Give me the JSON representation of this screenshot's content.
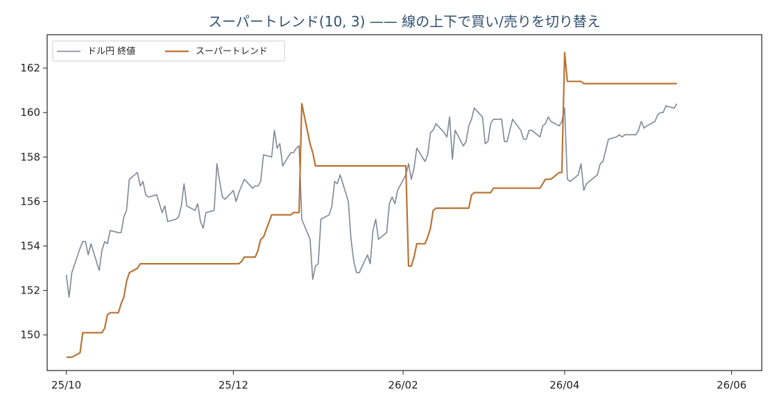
{
  "colors": {
    "price": "#7f8594",
    "supertrend": "#b87333",
    "axis": "#222222",
    "title": "#2f4f6f"
  },
  "chart_data": {
    "type": "line",
    "title": "スーパートレンド(10, 3) —— 線の上下で買い/売りを切り替え",
    "xlabel": "",
    "ylabel": "",
    "x_ticks": [
      {
        "label": "25/10",
        "date": "2025-10-01"
      },
      {
        "label": "25/12",
        "date": "2025-12-01"
      },
      {
        "label": "26/02",
        "date": "2026-02-01"
      },
      {
        "label": "26/04",
        "date": "2026-04-01"
      },
      {
        "label": "26/06",
        "date": "2026-06-01"
      }
    ],
    "y_ticks": [
      150,
      152,
      154,
      156,
      158,
      160,
      162
    ],
    "xlim": [
      "2025-09-24",
      "2026-06-12"
    ],
    "ylim": [
      148.4,
      163.5
    ],
    "grid": false,
    "legend_position": "upper-left",
    "series": [
      {
        "name": "ドル円 終値",
        "color": "#7f8594",
        "points": [
          [
            "2025-10-01",
            152.7
          ],
          [
            "2025-10-02",
            151.7
          ],
          [
            "2025-10-03",
            152.8
          ],
          [
            "2025-10-06",
            153.9
          ],
          [
            "2025-10-07",
            154.2
          ],
          [
            "2025-10-08",
            154.2
          ],
          [
            "2025-10-09",
            153.6
          ],
          [
            "2025-10-10",
            154.1
          ],
          [
            "2025-10-13",
            152.9
          ],
          [
            "2025-10-14",
            153.8
          ],
          [
            "2025-10-15",
            154.2
          ],
          [
            "2025-10-16",
            154.1
          ],
          [
            "2025-10-17",
            154.7
          ],
          [
            "2025-10-20",
            154.6
          ],
          [
            "2025-10-21",
            154.6
          ],
          [
            "2025-10-22",
            155.3
          ],
          [
            "2025-10-23",
            155.6
          ],
          [
            "2025-10-24",
            157.0
          ],
          [
            "2025-10-27",
            157.3
          ],
          [
            "2025-10-28",
            156.7
          ],
          [
            "2025-10-29",
            156.9
          ],
          [
            "2025-10-30",
            156.3
          ],
          [
            "2025-10-31",
            156.2
          ],
          [
            "2025-11-03",
            156.3
          ],
          [
            "2025-11-04",
            155.9
          ],
          [
            "2025-11-05",
            155.5
          ],
          [
            "2025-11-06",
            155.8
          ],
          [
            "2025-11-07",
            155.1
          ],
          [
            "2025-11-10",
            155.2
          ],
          [
            "2025-11-11",
            155.3
          ],
          [
            "2025-11-12",
            155.8
          ],
          [
            "2025-11-13",
            156.8
          ],
          [
            "2025-11-14",
            155.8
          ],
          [
            "2025-11-17",
            155.6
          ],
          [
            "2025-11-18",
            155.9
          ],
          [
            "2025-11-19",
            155.1
          ],
          [
            "2025-11-20",
            154.8
          ],
          [
            "2025-11-21",
            155.5
          ],
          [
            "2025-11-24",
            155.6
          ],
          [
            "2025-11-25",
            157.7
          ],
          [
            "2025-11-26",
            156.9
          ],
          [
            "2025-11-27",
            156.2
          ],
          [
            "2025-11-28",
            156.1
          ],
          [
            "2025-12-01",
            156.5
          ],
          [
            "2025-12-02",
            156.0
          ],
          [
            "2025-12-03",
            156.4
          ],
          [
            "2025-12-04",
            156.7
          ],
          [
            "2025-12-05",
            157.0
          ],
          [
            "2025-12-08",
            156.6
          ],
          [
            "2025-12-09",
            156.7
          ],
          [
            "2025-12-10",
            156.7
          ],
          [
            "2025-12-11",
            156.9
          ],
          [
            "2025-12-12",
            158.1
          ],
          [
            "2025-12-15",
            158.0
          ],
          [
            "2025-12-16",
            159.2
          ],
          [
            "2025-12-17",
            158.4
          ],
          [
            "2025-12-18",
            158.6
          ],
          [
            "2025-12-19",
            157.6
          ],
          [
            "2025-12-22",
            158.2
          ],
          [
            "2025-12-23",
            158.2
          ],
          [
            "2025-12-24",
            158.4
          ],
          [
            "2025-12-25",
            158.5
          ],
          [
            "2025-12-26",
            155.2
          ],
          [
            "2025-12-29",
            154.3
          ],
          [
            "2025-12-30",
            152.5
          ],
          [
            "2025-12-31",
            153.1
          ],
          [
            "2026-01-01",
            153.2
          ],
          [
            "2026-01-02",
            155.2
          ],
          [
            "2026-01-05",
            155.4
          ],
          [
            "2026-01-06",
            155.8
          ],
          [
            "2026-01-07",
            156.9
          ],
          [
            "2026-01-08",
            156.8
          ],
          [
            "2026-01-09",
            157.2
          ],
          [
            "2026-01-12",
            156.0
          ],
          [
            "2026-01-13",
            154.3
          ],
          [
            "2026-01-14",
            153.3
          ],
          [
            "2026-01-15",
            152.8
          ],
          [
            "2026-01-16",
            152.8
          ],
          [
            "2026-01-19",
            153.6
          ],
          [
            "2026-01-20",
            153.2
          ],
          [
            "2026-01-21",
            154.7
          ],
          [
            "2026-01-22",
            155.2
          ],
          [
            "2026-01-23",
            154.3
          ],
          [
            "2026-01-26",
            154.6
          ],
          [
            "2026-01-27",
            155.9
          ],
          [
            "2026-01-28",
            156.2
          ],
          [
            "2026-01-29",
            155.9
          ],
          [
            "2026-01-30",
            156.5
          ],
          [
            "2026-02-02",
            157.2
          ],
          [
            "2026-02-03",
            157.7
          ],
          [
            "2026-02-04",
            157.0
          ],
          [
            "2026-02-05",
            157.5
          ],
          [
            "2026-02-06",
            158.4
          ],
          [
            "2026-02-09",
            157.8
          ],
          [
            "2026-02-10",
            158.1
          ],
          [
            "2026-02-11",
            159.1
          ],
          [
            "2026-02-12",
            159.2
          ],
          [
            "2026-02-13",
            159.5
          ],
          [
            "2026-02-16",
            159.1
          ],
          [
            "2026-02-17",
            158.9
          ],
          [
            "2026-02-18",
            159.8
          ],
          [
            "2026-02-19",
            157.9
          ],
          [
            "2026-02-20",
            159.2
          ],
          [
            "2026-02-23",
            158.5
          ],
          [
            "2026-02-24",
            158.7
          ],
          [
            "2026-02-25",
            159.4
          ],
          [
            "2026-02-26",
            159.7
          ],
          [
            "2026-02-27",
            160.2
          ],
          [
            "2026-03-02",
            159.8
          ],
          [
            "2026-03-03",
            158.6
          ],
          [
            "2026-03-04",
            158.7
          ],
          [
            "2026-03-05",
            159.5
          ],
          [
            "2026-03-06",
            159.7
          ],
          [
            "2026-03-09",
            159.7
          ],
          [
            "2026-03-10",
            158.7
          ],
          [
            "2026-03-11",
            158.7
          ],
          [
            "2026-03-12",
            159.2
          ],
          [
            "2026-03-13",
            159.7
          ],
          [
            "2026-03-16",
            159.2
          ],
          [
            "2026-03-17",
            158.8
          ],
          [
            "2026-03-18",
            158.8
          ],
          [
            "2026-03-19",
            159.2
          ],
          [
            "2026-03-20",
            159.2
          ],
          [
            "2026-03-23",
            158.9
          ],
          [
            "2026-03-24",
            159.4
          ],
          [
            "2026-03-25",
            159.5
          ],
          [
            "2026-03-26",
            159.8
          ],
          [
            "2026-03-27",
            159.6
          ],
          [
            "2026-03-30",
            159.4
          ],
          [
            "2026-03-31",
            159.6
          ],
          [
            "2026-04-01",
            160.2
          ],
          [
            "2026-04-02",
            157.0
          ],
          [
            "2026-04-03",
            156.9
          ],
          [
            "2026-04-06",
            157.2
          ],
          [
            "2026-04-07",
            157.7
          ],
          [
            "2026-04-08",
            156.5
          ],
          [
            "2026-04-09",
            156.8
          ],
          [
            "2026-04-10",
            156.9
          ],
          [
            "2026-04-13",
            157.2
          ],
          [
            "2026-04-14",
            157.7
          ],
          [
            "2026-04-15",
            157.8
          ],
          [
            "2026-04-16",
            158.3
          ],
          [
            "2026-04-17",
            158.8
          ],
          [
            "2026-04-20",
            158.9
          ],
          [
            "2026-04-21",
            159.0
          ],
          [
            "2026-04-22",
            158.9
          ],
          [
            "2026-04-23",
            159.0
          ],
          [
            "2026-04-24",
            159.0
          ],
          [
            "2026-04-27",
            159.0
          ],
          [
            "2026-04-28",
            159.2
          ],
          [
            "2026-04-29",
            159.6
          ],
          [
            "2026-04-30",
            159.3
          ],
          [
            "2026-05-01",
            159.4
          ],
          [
            "2026-05-04",
            159.6
          ],
          [
            "2026-05-05",
            159.9
          ],
          [
            "2026-05-06",
            160.0
          ],
          [
            "2026-05-07",
            160.0
          ],
          [
            "2026-05-08",
            160.3
          ],
          [
            "2026-05-11",
            160.2
          ],
          [
            "2026-05-12",
            160.4
          ]
        ]
      },
      {
        "name": "スーパートレンド",
        "color": "#b87333",
        "points": [
          [
            "2025-10-01",
            149.0
          ],
          [
            "2025-10-02",
            149.0
          ],
          [
            "2025-10-03",
            149.0
          ],
          [
            "2025-10-06",
            149.2
          ],
          [
            "2025-10-07",
            150.1
          ],
          [
            "2025-10-08",
            150.1
          ],
          [
            "2025-10-09",
            150.1
          ],
          [
            "2025-10-10",
            150.1
          ],
          [
            "2025-10-13",
            150.1
          ],
          [
            "2025-10-14",
            150.1
          ],
          [
            "2025-10-15",
            150.3
          ],
          [
            "2025-10-16",
            150.9
          ],
          [
            "2025-10-17",
            151.0
          ],
          [
            "2025-10-20",
            151.0
          ],
          [
            "2025-10-21",
            151.4
          ],
          [
            "2025-10-22",
            151.7
          ],
          [
            "2025-10-23",
            152.4
          ],
          [
            "2025-10-24",
            152.8
          ],
          [
            "2025-10-27",
            153.0
          ],
          [
            "2025-10-28",
            153.2
          ],
          [
            "2025-10-29",
            153.2
          ],
          [
            "2025-11-05",
            153.2
          ],
          [
            "2025-11-17",
            153.2
          ],
          [
            "2025-11-28",
            153.2
          ],
          [
            "2025-12-03",
            153.2
          ],
          [
            "2025-12-04",
            153.3
          ],
          [
            "2025-12-05",
            153.5
          ],
          [
            "2025-12-08",
            153.5
          ],
          [
            "2025-12-09",
            153.5
          ],
          [
            "2025-12-10",
            153.8
          ],
          [
            "2025-12-11",
            154.3
          ],
          [
            "2025-12-12",
            154.4
          ],
          [
            "2025-12-15",
            155.4
          ],
          [
            "2025-12-16",
            155.4
          ],
          [
            "2025-12-17",
            155.4
          ],
          [
            "2025-12-18",
            155.4
          ],
          [
            "2025-12-19",
            155.4
          ],
          [
            "2025-12-22",
            155.4
          ],
          [
            "2025-12-23",
            155.5
          ],
          [
            "2025-12-24",
            155.5
          ],
          [
            "2025-12-25",
            155.5
          ],
          [
            "2025-12-26",
            160.4
          ],
          [
            "2025-12-29",
            158.6
          ],
          [
            "2025-12-30",
            158.2
          ],
          [
            "2025-12-31",
            157.6
          ],
          [
            "2026-01-01",
            157.6
          ],
          [
            "2026-01-15",
            157.6
          ],
          [
            "2026-01-30",
            157.6
          ],
          [
            "2026-02-02",
            157.6
          ],
          [
            "2026-02-03",
            153.1
          ],
          [
            "2026-02-04",
            153.1
          ],
          [
            "2026-02-05",
            153.5
          ],
          [
            "2026-02-06",
            154.1
          ],
          [
            "2026-02-09",
            154.1
          ],
          [
            "2026-02-10",
            154.4
          ],
          [
            "2026-02-11",
            154.8
          ],
          [
            "2026-02-12",
            155.6
          ],
          [
            "2026-02-13",
            155.7
          ],
          [
            "2026-02-16",
            155.7
          ],
          [
            "2026-02-24",
            155.7
          ],
          [
            "2026-02-25",
            155.7
          ],
          [
            "2026-02-26",
            156.3
          ],
          [
            "2026-02-27",
            156.4
          ],
          [
            "2026-03-02",
            156.4
          ],
          [
            "2026-03-03",
            156.4
          ],
          [
            "2026-03-04",
            156.4
          ],
          [
            "2026-03-05",
            156.4
          ],
          [
            "2026-03-06",
            156.6
          ],
          [
            "2026-03-09",
            156.6
          ],
          [
            "2026-03-20",
            156.6
          ],
          [
            "2026-03-23",
            156.6
          ],
          [
            "2026-03-24",
            156.8
          ],
          [
            "2026-03-25",
            157.0
          ],
          [
            "2026-03-26",
            157.0
          ],
          [
            "2026-03-27",
            157.0
          ],
          [
            "2026-03-30",
            157.3
          ],
          [
            "2026-03-31",
            157.3
          ],
          [
            "2026-04-01",
            162.7
          ],
          [
            "2026-04-02",
            161.4
          ],
          [
            "2026-04-03",
            161.4
          ],
          [
            "2026-04-06",
            161.4
          ],
          [
            "2026-04-07",
            161.4
          ],
          [
            "2026-04-08",
            161.3
          ],
          [
            "2026-04-09",
            161.3
          ],
          [
            "2026-04-20",
            161.3
          ],
          [
            "2026-05-12",
            161.3
          ]
        ]
      }
    ]
  }
}
